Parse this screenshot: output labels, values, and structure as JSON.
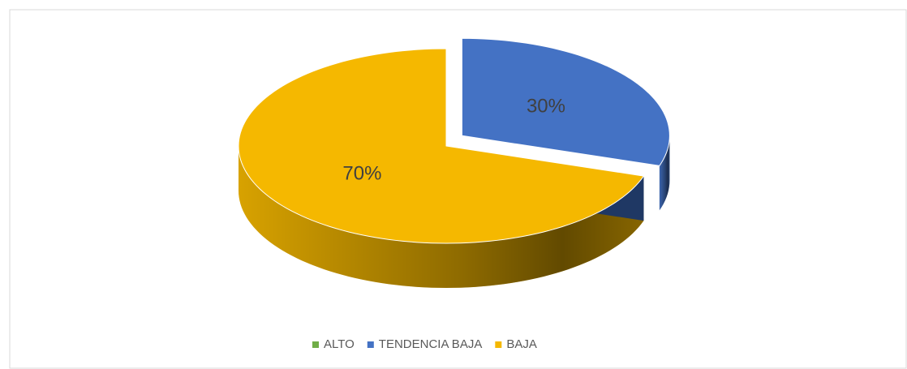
{
  "chart_data": {
    "type": "pie",
    "categories": [
      "ALTO",
      "TENDENCIA BAJA",
      "BAJA"
    ],
    "values": [
      0,
      30,
      70
    ],
    "value_labels": [
      null,
      "30%",
      "70%"
    ],
    "colors": [
      "#70ad47",
      "#4472c4",
      "#f5b800"
    ],
    "exploded": "TENDENCIA BAJA",
    "legend": "bottom"
  }
}
